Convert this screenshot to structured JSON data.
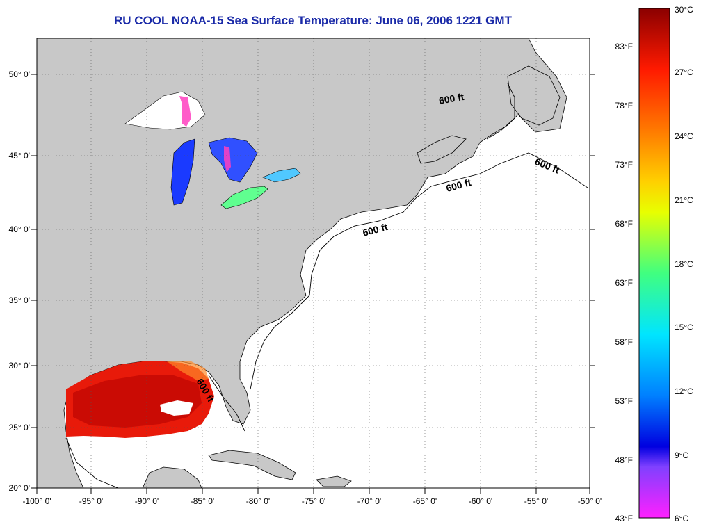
{
  "title": "RU COOL  NOAA-15  Sea Surface Temperature:  June 06, 2006 1221 GMT",
  "map": {
    "lon_ticks": [
      "-100° 0'",
      "-95° 0'",
      "-90° 0'",
      "-85° 0'",
      "-80° 0'",
      "-75° 0'",
      "-70° 0'",
      "-65° 0'",
      "-60° 0'",
      "-55° 0'",
      "-50° 0'"
    ],
    "lat_ticks": [
      "50° 0'",
      "45° 0'",
      "40° 0'",
      "35° 0'",
      "30° 0'",
      "25° 0'",
      "20° 0'"
    ],
    "contour_labels": [
      "600 ft",
      "600 ft",
      "600 ft",
      "600 ft",
      "600 ft"
    ],
    "colors": {
      "land": "#c8c8c8",
      "ocean": "#ffffff",
      "grid": "#555555"
    }
  },
  "colorbar": {
    "celsius": [
      "30°C",
      "27°C",
      "24°C",
      "21°C",
      "18°C",
      "15°C",
      "12°C",
      "9°C",
      "6°C"
    ],
    "fahrenheit": [
      "83°F",
      "78°F",
      "73°F",
      "68°F",
      "63°F",
      "58°F",
      "53°F",
      "48°F",
      "43°F"
    ],
    "stops": [
      "#8b0000",
      "#ff1a00",
      "#ff7a00",
      "#ffd000",
      "#e8ff00",
      "#40ff80",
      "#00e5ff",
      "#0080ff",
      "#0000e0",
      "#8040ff",
      "#ff20ff"
    ]
  }
}
